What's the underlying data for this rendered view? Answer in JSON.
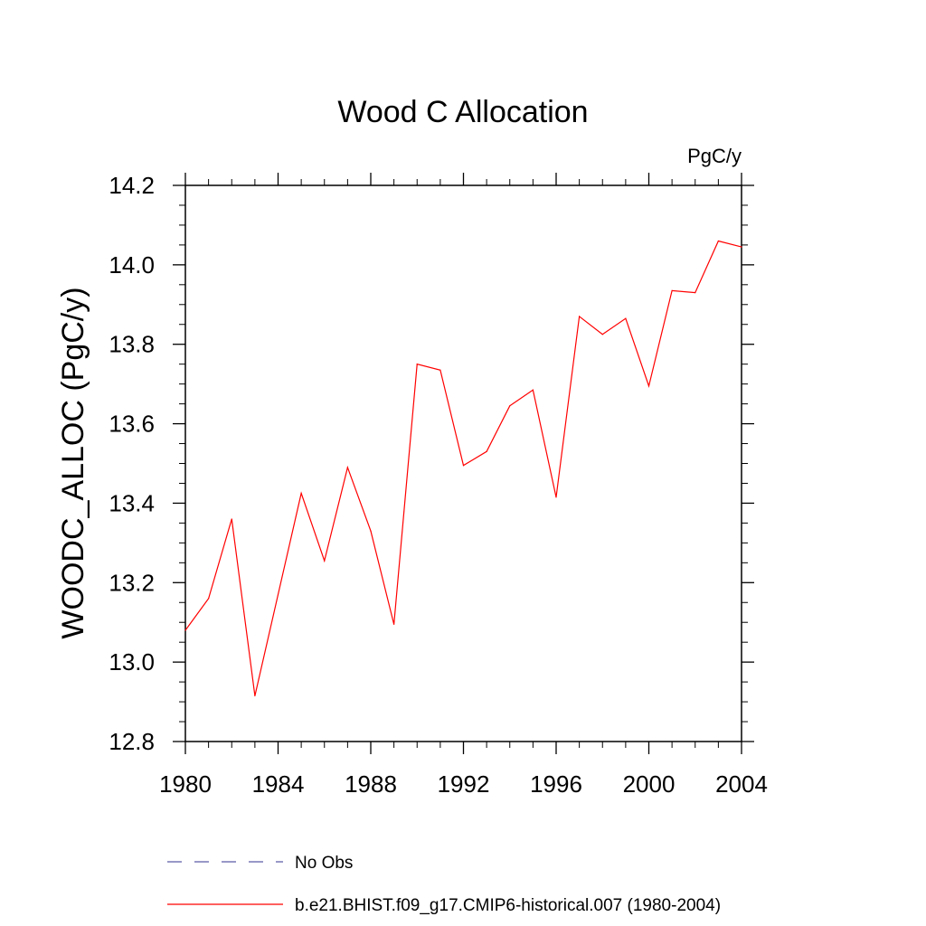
{
  "chart_data": {
    "type": "line",
    "title": "Wood C Allocation",
    "units_label": "PgC/y",
    "xlabel": "",
    "ylabel": "WOODC_ALLOC  (PgC/y)",
    "xlim": [
      1980,
      2004
    ],
    "ylim": [
      12.8,
      14.2
    ],
    "x_ticks": [
      "1980",
      "1984",
      "1988",
      "1992",
      "1996",
      "2000",
      "2004"
    ],
    "y_ticks": [
      "12.8",
      "13.0",
      "13.2",
      "13.4",
      "13.6",
      "13.8",
      "14.0",
      "14.2"
    ],
    "grid": false,
    "series": [
      {
        "name": "b.e21.BHIST.f09_g17.CMIP6-historical.007 (1980-2004)",
        "color": "#ff0000",
        "style": "solid",
        "x": [
          1980,
          1981,
          1982,
          1983,
          1984,
          1985,
          1986,
          1987,
          1988,
          1989,
          1990,
          1991,
          1992,
          1993,
          1994,
          1995,
          1996,
          1997,
          1998,
          1999,
          2000,
          2001,
          2002,
          2003,
          2004
        ],
        "y": [
          13.08,
          13.16,
          13.36,
          12.915,
          13.17,
          13.425,
          13.255,
          13.49,
          13.33,
          13.095,
          13.75,
          13.735,
          13.495,
          13.53,
          13.645,
          13.685,
          13.415,
          13.87,
          13.825,
          13.865,
          13.695,
          13.935,
          13.93,
          14.06,
          14.045
        ]
      }
    ],
    "legend": [
      {
        "label": "No Obs",
        "color": "#5a5aa8",
        "style": "dashed"
      },
      {
        "label": "b.e21.BHIST.f09_g17.CMIP6-historical.007 (1980-2004)",
        "color": "#ff0000",
        "style": "solid"
      }
    ],
    "legend_position": "bottom"
  }
}
